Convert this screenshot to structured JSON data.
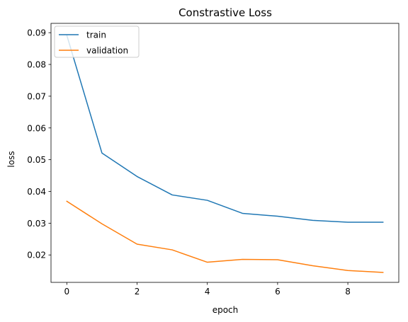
{
  "chart_data": {
    "type": "line",
    "title": "Constrastive Loss",
    "xlabel": "epoch",
    "ylabel": "loss",
    "x": [
      0,
      1,
      2,
      3,
      4,
      5,
      6,
      7,
      8,
      9
    ],
    "series": [
      {
        "name": "train",
        "color": "#1f77b4",
        "values": [
          0.0892,
          0.0521,
          0.0447,
          0.0389,
          0.0372,
          0.0331,
          0.0322,
          0.0309,
          0.0303,
          0.0303
        ]
      },
      {
        "name": "validation",
        "color": "#ff7f0e",
        "values": [
          0.0369,
          0.0298,
          0.0234,
          0.0216,
          0.0177,
          0.0186,
          0.0185,
          0.0166,
          0.0151,
          0.0145
        ]
      }
    ],
    "xlim": [
      -0.45,
      9.45
    ],
    "ylim": [
      0.01136,
      0.09294
    ],
    "xticks": [
      0,
      2,
      4,
      6,
      8
    ],
    "xtick_labels": [
      "0",
      "2",
      "4",
      "6",
      "8"
    ],
    "yticks": [
      0.02,
      0.03,
      0.04,
      0.05,
      0.06,
      0.07,
      0.08,
      0.09
    ],
    "ytick_labels": [
      "0.02",
      "0.03",
      "0.04",
      "0.05",
      "0.06",
      "0.07",
      "0.08",
      "0.09"
    ],
    "grid": false,
    "legend_position": "top-left"
  }
}
